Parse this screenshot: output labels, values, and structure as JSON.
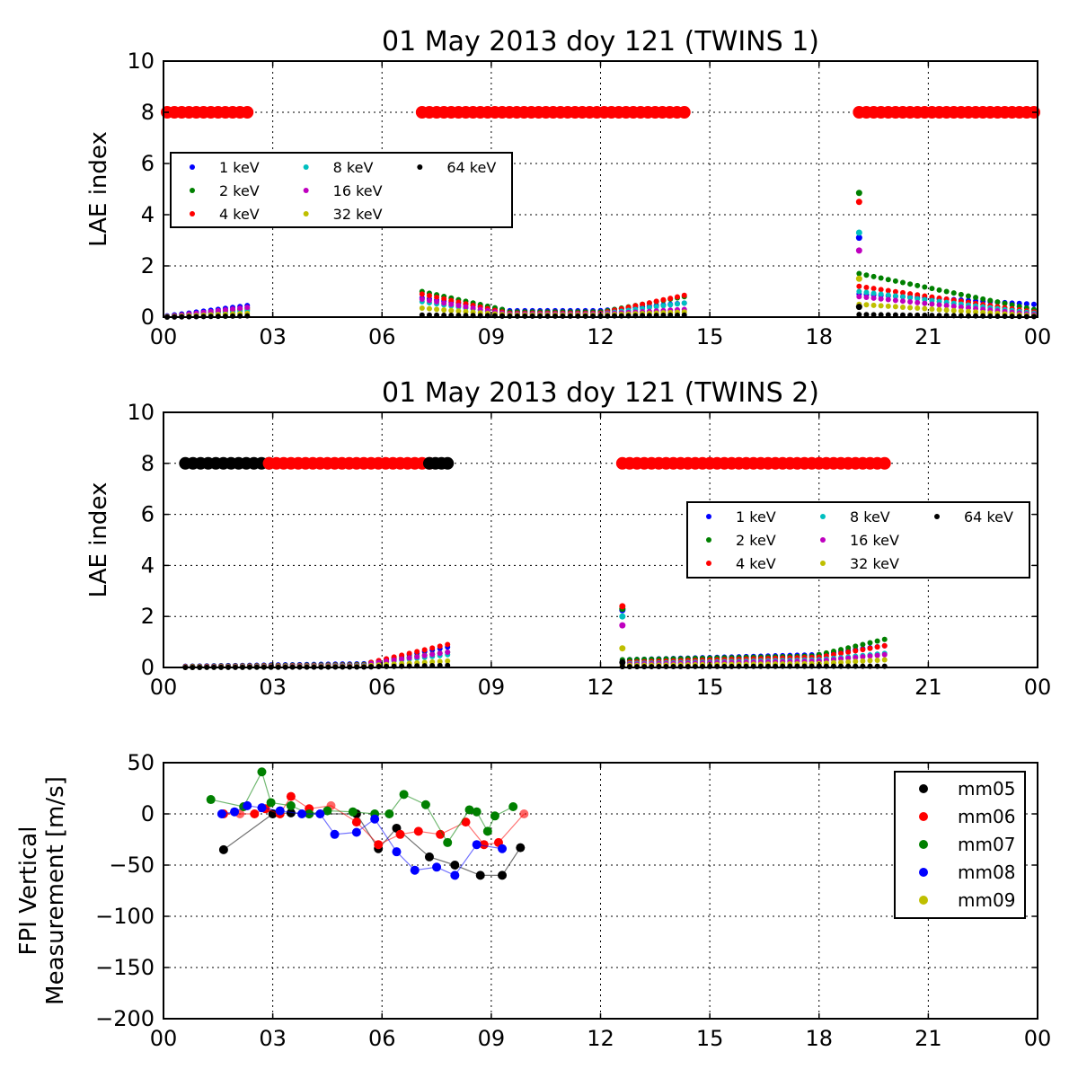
{
  "chart_data": [
    {
      "type": "scatter",
      "title": "01 May 2013 doy 121 (TWINS 1)",
      "xlabel": "",
      "ylabel": "LAE index",
      "xlim": [
        0,
        24
      ],
      "ylim": [
        0,
        10
      ],
      "x_ticks": [
        "00",
        "03",
        "06",
        "09",
        "12",
        "15",
        "18",
        "21",
        "00"
      ],
      "y_ticks": [
        "0",
        "2",
        "4",
        "6",
        "8",
        "10"
      ],
      "grid": true,
      "legend": {
        "placement": "center-left",
        "columns": 3
      },
      "series": [
        {
          "name": "1 keV",
          "color": "#0000ff",
          "segments": [
            {
              "x0": 0.1,
              "x1": 2.3,
              "y0": 0.05,
              "y1": 0.45
            },
            {
              "x0": 7.1,
              "x1": 9.3,
              "y0": 0.75,
              "y1": 0.3
            },
            {
              "x0": 9.3,
              "x1": 12.0,
              "y0": 0.25,
              "y1": 0.25
            },
            {
              "x0": 12.0,
              "x1": 14.3,
              "y0": 0.25,
              "y1": 0.55
            },
            {
              "x0": 19.1,
              "x1": 23.9,
              "y0": 0.9,
              "y1": 0.5
            }
          ]
        },
        {
          "name": "2 keV",
          "color": "#008000",
          "segments": [
            {
              "x0": 0.1,
              "x1": 2.3,
              "y0": 0.03,
              "y1": 0.35
            },
            {
              "x0": 7.1,
              "x1": 9.3,
              "y0": 1.0,
              "y1": 0.3
            },
            {
              "x0": 9.3,
              "x1": 12.0,
              "y0": 0.2,
              "y1": 0.2
            },
            {
              "x0": 12.0,
              "x1": 14.3,
              "y0": 0.2,
              "y1": 0.8
            },
            {
              "x0": 19.1,
              "x1": 23.9,
              "y0": 1.7,
              "y1": 0.3
            }
          ]
        },
        {
          "name": "4 keV",
          "color": "#ff0000",
          "segments": [
            {
              "x0": 0.1,
              "x1": 2.3,
              "y0": 0.02,
              "y1": 0.3
            },
            {
              "x0": 7.1,
              "x1": 9.3,
              "y0": 0.9,
              "y1": 0.2
            },
            {
              "x0": 9.3,
              "x1": 12.0,
              "y0": 0.15,
              "y1": 0.15
            },
            {
              "x0": 12.0,
              "x1": 14.3,
              "y0": 0.15,
              "y1": 0.85
            },
            {
              "x0": 19.1,
              "x1": 23.9,
              "y0": 1.2,
              "y1": 0.2
            }
          ]
        },
        {
          "name": "8 keV",
          "color": "#00bfbf",
          "segments": [
            {
              "x0": 0.1,
              "x1": 2.3,
              "y0": 0.02,
              "y1": 0.25
            },
            {
              "x0": 7.1,
              "x1": 9.3,
              "y0": 0.6,
              "y1": 0.15
            },
            {
              "x0": 9.3,
              "x1": 12.0,
              "y0": 0.12,
              "y1": 0.12
            },
            {
              "x0": 12.0,
              "x1": 14.3,
              "y0": 0.12,
              "y1": 0.55
            },
            {
              "x0": 19.1,
              "x1": 23.9,
              "y0": 1.0,
              "y1": 0.15
            }
          ]
        },
        {
          "name": "16 keV",
          "color": "#bf00bf",
          "segments": [
            {
              "x0": 0.1,
              "x1": 2.3,
              "y0": 0.02,
              "y1": 0.38
            },
            {
              "x0": 7.1,
              "x1": 9.3,
              "y0": 0.7,
              "y1": 0.15
            },
            {
              "x0": 9.3,
              "x1": 12.0,
              "y0": 0.12,
              "y1": 0.12
            },
            {
              "x0": 12.0,
              "x1": 14.3,
              "y0": 0.12,
              "y1": 0.3
            },
            {
              "x0": 19.1,
              "x1": 23.9,
              "y0": 0.8,
              "y1": 0.1
            }
          ]
        },
        {
          "name": "32 keV",
          "color": "#bfbf00",
          "segments": [
            {
              "x0": 0.1,
              "x1": 2.3,
              "y0": 0.01,
              "y1": 0.15
            },
            {
              "x0": 7.1,
              "x1": 9.3,
              "y0": 0.35,
              "y1": 0.1
            },
            {
              "x0": 9.3,
              "x1": 12.0,
              "y0": 0.08,
              "y1": 0.08
            },
            {
              "x0": 12.0,
              "x1": 14.3,
              "y0": 0.08,
              "y1": 0.2
            },
            {
              "x0": 19.1,
              "x1": 23.9,
              "y0": 0.5,
              "y1": 0.05
            }
          ]
        },
        {
          "name": "64 keV",
          "color": "#000000",
          "segments": [
            {
              "x0": 0.1,
              "x1": 2.3,
              "y0": 0.0,
              "y1": 0.05
            },
            {
              "x0": 7.1,
              "x1": 9.3,
              "y0": 0.08,
              "y1": 0.05
            },
            {
              "x0": 9.3,
              "x1": 12.0,
              "y0": 0.04,
              "y1": 0.04
            },
            {
              "x0": 12.0,
              "x1": 14.3,
              "y0": 0.04,
              "y1": 0.08
            },
            {
              "x0": 19.1,
              "x1": 23.9,
              "y0": 0.1,
              "y1": 0.02
            }
          ]
        }
      ],
      "spikes": [
        {
          "x": 19.1,
          "values": [
            3.1,
            4.85,
            4.5,
            3.3,
            2.6,
            1.5,
            0.4
          ]
        }
      ],
      "markers": [
        {
          "color": "#ff0000",
          "x0": 0.1,
          "x1": 2.3,
          "y": 8
        },
        {
          "color": "#ff0000",
          "x0": 7.1,
          "x1": 14.3,
          "y": 8
        },
        {
          "color": "#ff0000",
          "x0": 19.1,
          "x1": 23.9,
          "y": 8
        }
      ]
    },
    {
      "type": "scatter",
      "title": "01 May 2013 doy 121 (TWINS 2)",
      "xlabel": "",
      "ylabel": "LAE index",
      "xlim": [
        0,
        24
      ],
      "ylim": [
        0,
        10
      ],
      "x_ticks": [
        "00",
        "03",
        "06",
        "09",
        "12",
        "15",
        "18",
        "21",
        "00"
      ],
      "y_ticks": [
        "0",
        "2",
        "4",
        "6",
        "8",
        "10"
      ],
      "grid": true,
      "legend": {
        "placement": "center-right",
        "columns": 3
      },
      "series": [
        {
          "name": "1 keV",
          "color": "#0000ff",
          "segments": [
            {
              "x0": 0.6,
              "x1": 5.7,
              "y0": 0.05,
              "y1": 0.15
            },
            {
              "x0": 5.7,
              "x1": 7.8,
              "y0": 0.2,
              "y1": 0.8
            },
            {
              "x0": 12.6,
              "x1": 18.0,
              "y0": 0.3,
              "y1": 0.5
            },
            {
              "x0": 18.0,
              "x1": 19.8,
              "y0": 0.5,
              "y1": 0.85
            }
          ]
        },
        {
          "name": "2 keV",
          "color": "#008000",
          "segments": [
            {
              "x0": 0.6,
              "x1": 5.7,
              "y0": 0.04,
              "y1": 0.12
            },
            {
              "x0": 5.7,
              "x1": 7.8,
              "y0": 0.2,
              "y1": 0.6
            },
            {
              "x0": 12.6,
              "x1": 18.0,
              "y0": 0.3,
              "y1": 0.45
            },
            {
              "x0": 18.0,
              "x1": 19.8,
              "y0": 0.5,
              "y1": 1.1
            }
          ]
        },
        {
          "name": "4 keV",
          "color": "#ff0000",
          "segments": [
            {
              "x0": 0.6,
              "x1": 5.7,
              "y0": 0.03,
              "y1": 0.1
            },
            {
              "x0": 5.7,
              "x1": 7.8,
              "y0": 0.2,
              "y1": 0.9
            },
            {
              "x0": 12.6,
              "x1": 18.0,
              "y0": 0.2,
              "y1": 0.4
            },
            {
              "x0": 18.0,
              "x1": 19.8,
              "y0": 0.4,
              "y1": 0.85
            }
          ]
        },
        {
          "name": "8 keV",
          "color": "#00bfbf",
          "segments": [
            {
              "x0": 0.6,
              "x1": 5.7,
              "y0": 0.02,
              "y1": 0.08
            },
            {
              "x0": 5.7,
              "x1": 7.8,
              "y0": 0.15,
              "y1": 0.5
            },
            {
              "x0": 12.6,
              "x1": 18.0,
              "y0": 0.15,
              "y1": 0.3
            },
            {
              "x0": 18.0,
              "x1": 19.8,
              "y0": 0.3,
              "y1": 0.55
            }
          ]
        },
        {
          "name": "16 keV",
          "color": "#bf00bf",
          "segments": [
            {
              "x0": 0.6,
              "x1": 5.7,
              "y0": 0.02,
              "y1": 0.06
            },
            {
              "x0": 5.7,
              "x1": 7.8,
              "y0": 0.15,
              "y1": 0.6
            },
            {
              "x0": 12.6,
              "x1": 18.0,
              "y0": 0.12,
              "y1": 0.25
            },
            {
              "x0": 18.0,
              "x1": 19.8,
              "y0": 0.25,
              "y1": 0.5
            }
          ]
        },
        {
          "name": "32 keV",
          "color": "#bfbf00",
          "segments": [
            {
              "x0": 0.6,
              "x1": 5.7,
              "y0": 0.01,
              "y1": 0.04
            },
            {
              "x0": 5.7,
              "x1": 7.8,
              "y0": 0.08,
              "y1": 0.25
            },
            {
              "x0": 12.6,
              "x1": 18.0,
              "y0": 0.08,
              "y1": 0.15
            },
            {
              "x0": 18.0,
              "x1": 19.8,
              "y0": 0.15,
              "y1": 0.3
            }
          ]
        },
        {
          "name": "64 keV",
          "color": "#000000",
          "segments": [
            {
              "x0": 0.6,
              "x1": 5.7,
              "y0": 0.0,
              "y1": 0.02
            },
            {
              "x0": 5.7,
              "x1": 7.8,
              "y0": 0.03,
              "y1": 0.08
            },
            {
              "x0": 12.6,
              "x1": 18.0,
              "y0": 0.03,
              "y1": 0.05
            },
            {
              "x0": 18.0,
              "x1": 19.8,
              "y0": 0.05,
              "y1": 0.05
            }
          ]
        }
      ],
      "spikes": [
        {
          "x": 12.6,
          "values": [
            2.25,
            2.3,
            2.4,
            2.0,
            1.65,
            0.75,
            0.2
          ]
        }
      ],
      "markers": [
        {
          "color": "#000000",
          "x0": 0.6,
          "x1": 2.9,
          "y": 8
        },
        {
          "color": "#ff0000",
          "x0": 2.9,
          "x1": 7.3,
          "y": 8
        },
        {
          "color": "#000000",
          "x0": 7.3,
          "x1": 7.8,
          "y": 8
        },
        {
          "color": "#ff0000",
          "x0": 12.6,
          "x1": 19.8,
          "y": 8
        }
      ]
    },
    {
      "type": "line",
      "title": "",
      "xlabel": "",
      "ylabel": "FPI Vertical\nMeasurement [m/s]",
      "ylabel_lines": [
        "FPI Vertical",
        "Measurement [m/s]"
      ],
      "xlim": [
        0,
        24
      ],
      "ylim": [
        -200,
        50
      ],
      "x_ticks": [
        "00",
        "03",
        "06",
        "09",
        "12",
        "15",
        "18",
        "21",
        "00"
      ],
      "y_ticks": [
        "50",
        "0",
        "−50",
        "−100",
        "−150",
        "−200"
      ],
      "grid": true,
      "legend": {
        "placement": "top-right",
        "columns": 1
      },
      "series": [
        {
          "name": "mm05",
          "color": "#000000",
          "x": [
            1.65,
            3.0,
            3.5,
            4.0,
            5.3,
            5.9,
            6.4,
            7.3,
            8.0,
            8.7,
            9.3,
            9.8
          ],
          "y": [
            -35,
            0,
            1,
            0,
            0,
            -34,
            -14,
            -42,
            -50,
            -60,
            -60,
            -33
          ]
        },
        {
          "name": "mm06",
          "color": "#ff0000",
          "x": [
            1.65,
            2.1,
            2.5,
            2.8,
            3.2,
            3.5,
            4.0,
            4.6,
            5.3,
            5.9,
            6.5,
            7.0,
            7.6,
            8.3,
            8.8,
            9.2,
            9.9
          ],
          "y": [
            0,
            0,
            0,
            5,
            0,
            17,
            5,
            8,
            -8,
            -30,
            -20,
            -17,
            -20,
            -8,
            -30,
            -28,
            0
          ]
        },
        {
          "name": "mm07",
          "color": "#008000",
          "x": [
            1.3,
            2.2,
            2.7,
            2.95,
            3.5,
            4.0,
            4.5,
            5.2,
            5.8,
            6.2,
            6.6,
            7.2,
            7.8,
            8.4,
            8.6,
            8.9,
            9.1,
            9.6
          ],
          "y": [
            14,
            7,
            41,
            11,
            8,
            0,
            3,
            2,
            0,
            0,
            19,
            9,
            -28,
            4,
            2,
            -17,
            -2,
            7
          ]
        },
        {
          "name": "mm08",
          "color": "#0000ff",
          "x": [
            1.6,
            1.95,
            2.3,
            2.7,
            3.2,
            3.8,
            4.3,
            4.7,
            5.3,
            5.8,
            6.4,
            6.9,
            7.5,
            8.0,
            8.6,
            9.3
          ],
          "y": [
            0,
            2,
            8,
            6,
            3,
            0,
            0,
            -20,
            -18,
            -5,
            -37,
            -55,
            -52,
            -60,
            -30,
            -34
          ]
        },
        {
          "name": "mm09",
          "color": "#bfbf00",
          "x": [],
          "y": []
        }
      ]
    }
  ]
}
